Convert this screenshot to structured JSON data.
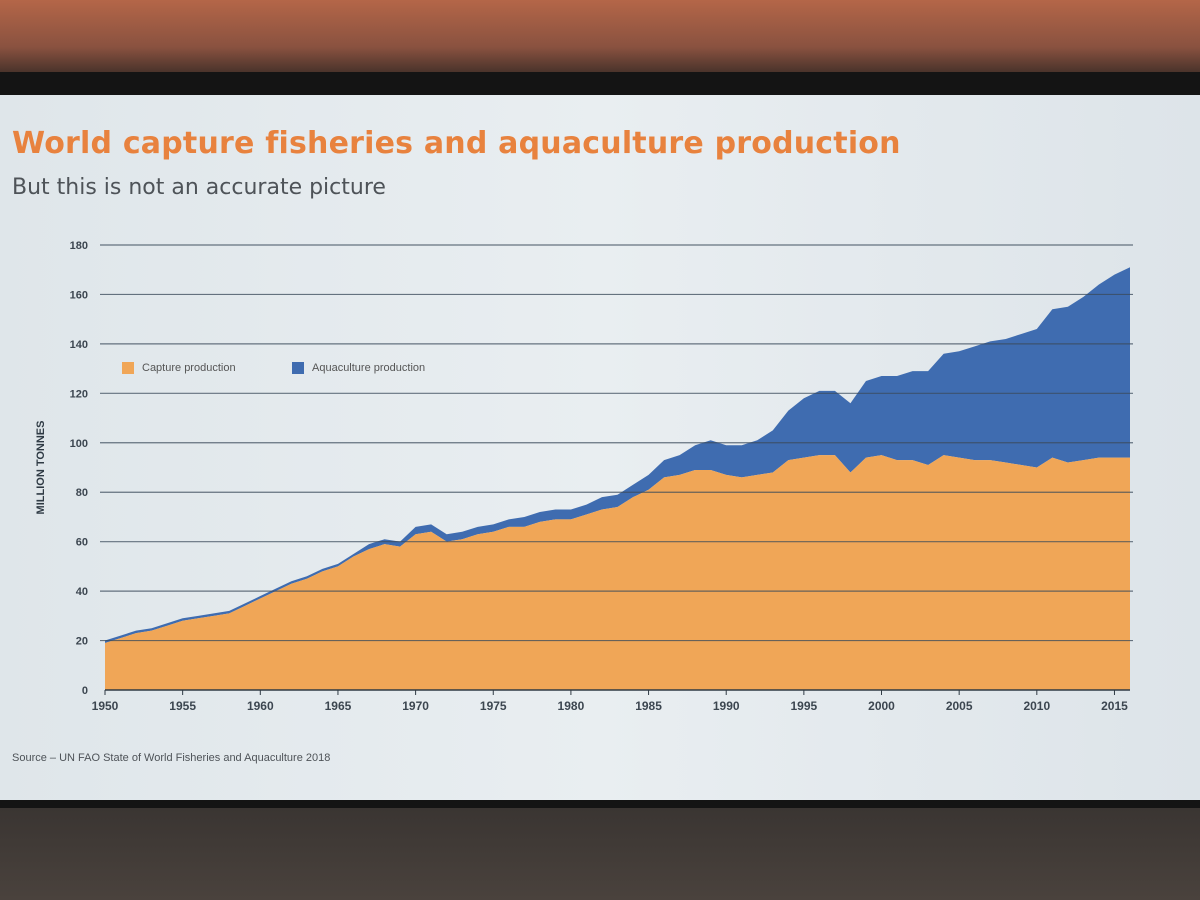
{
  "slide": {
    "title": "World capture fisheries and aquaculture production",
    "subtitle": "But this is not an accurate picture",
    "source": "Source – UN FAO State of World Fisheries and Aquaculture 2018"
  },
  "colors": {
    "capture": "#f0a657",
    "aquaculture": "#3f6cb0",
    "title": "#e8823e",
    "grid": "#3a4a5a"
  },
  "chart_data": {
    "type": "area",
    "stacked": true,
    "title": "World capture fisheries and aquaculture production",
    "subtitle": "But this is not an accurate picture",
    "xlabel": "",
    "ylabel": "MILLION TONNES",
    "ylim": [
      0,
      180
    ],
    "xlim": [
      1950,
      2016
    ],
    "yticks": [
      0,
      20,
      40,
      60,
      80,
      100,
      120,
      140,
      160,
      180
    ],
    "xticks": [
      1950,
      1955,
      1960,
      1965,
      1970,
      1975,
      1980,
      1985,
      1990,
      1995,
      2000,
      2005,
      2010,
      2015
    ],
    "grid": true,
    "legend": "top-left",
    "x": [
      1950,
      1951,
      1952,
      1953,
      1954,
      1955,
      1956,
      1957,
      1958,
      1959,
      1960,
      1961,
      1962,
      1963,
      1964,
      1965,
      1966,
      1967,
      1968,
      1969,
      1970,
      1971,
      1972,
      1973,
      1974,
      1975,
      1976,
      1977,
      1978,
      1979,
      1980,
      1981,
      1982,
      1983,
      1984,
      1985,
      1986,
      1987,
      1988,
      1989,
      1990,
      1991,
      1992,
      1993,
      1994,
      1995,
      1996,
      1997,
      1998,
      1999,
      2000,
      2001,
      2002,
      2003,
      2004,
      2005,
      2006,
      2007,
      2008,
      2009,
      2010,
      2011,
      2012,
      2013,
      2014,
      2015,
      2016
    ],
    "series": [
      {
        "name": "Capture production",
        "values": [
          19,
          21,
          23,
          24,
          26,
          28,
          29,
          30,
          31,
          34,
          37,
          40,
          43,
          45,
          48,
          50,
          54,
          57,
          59,
          58,
          63,
          64,
          60,
          61,
          63,
          64,
          66,
          66,
          68,
          69,
          69,
          71,
          73,
          74,
          78,
          81,
          86,
          87,
          89,
          89,
          87,
          86,
          87,
          88,
          93,
          94,
          95,
          95,
          88,
          94,
          95,
          93,
          93,
          91,
          95,
          94,
          93,
          93,
          92,
          91,
          90,
          94,
          92,
          93,
          94,
          94,
          94
        ]
      },
      {
        "name": "Aquaculture production",
        "values": [
          1,
          1,
          1,
          1,
          1,
          1,
          1,
          1,
          1,
          1,
          1,
          1,
          1,
          1,
          1,
          1,
          1,
          2,
          2,
          2,
          3,
          3,
          3,
          3,
          3,
          3,
          3,
          4,
          4,
          4,
          4,
          4,
          5,
          5,
          5,
          6,
          7,
          8,
          10,
          12,
          12,
          13,
          14,
          17,
          20,
          24,
          26,
          26,
          28,
          31,
          32,
          34,
          36,
          38,
          41,
          43,
          46,
          48,
          50,
          53,
          56,
          60,
          63,
          66,
          70,
          74,
          77
        ]
      }
    ]
  }
}
